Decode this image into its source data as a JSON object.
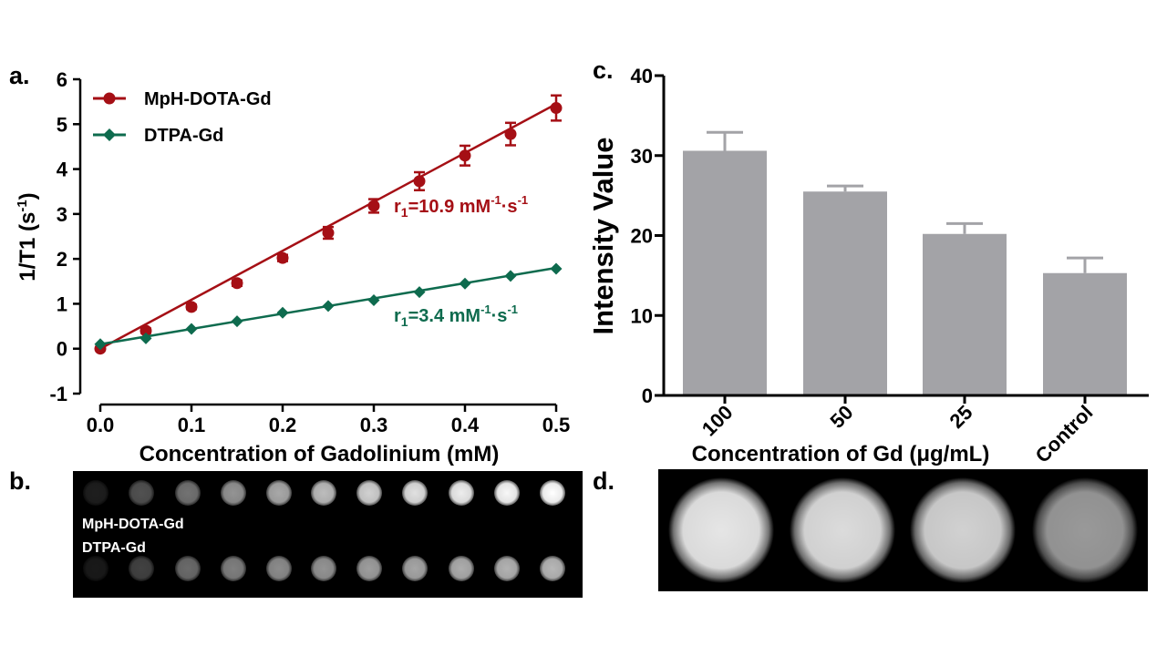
{
  "panels": {
    "a": "a.",
    "b": "b.",
    "c": "c.",
    "d": "d."
  },
  "chart_data": [
    {
      "type": "line",
      "panel": "a.",
      "xlabel": "Concentration of Gadolinium (mM)",
      "ylabel": "1/T1 (s-1)",
      "ylabel_parts": {
        "base": "1/T1 (s",
        "sup": "-1",
        "close": ")"
      },
      "xlim": [
        0,
        0.5
      ],
      "ylim": [
        -1,
        6
      ],
      "xticks": [
        "0.0",
        "0.1",
        "0.2",
        "0.3",
        "0.4",
        "0.5"
      ],
      "yticks": [
        "-1",
        "0",
        "1",
        "2",
        "3",
        "4",
        "5",
        "6"
      ],
      "legend_position": "top-left",
      "series": [
        {
          "name": "MpH-DOTA-Gd",
          "color": "#A50F15",
          "marker": "circle",
          "x": [
            0,
            0.05,
            0.1,
            0.15,
            0.2,
            0.25,
            0.3,
            0.35,
            0.4,
            0.45,
            0.5
          ],
          "y": [
            0.0,
            0.4,
            0.93,
            1.46,
            2.02,
            2.58,
            3.18,
            3.73,
            4.3,
            4.78,
            5.36
          ],
          "error": [
            0.03,
            0.05,
            0.05,
            0.06,
            0.07,
            0.13,
            0.15,
            0.2,
            0.22,
            0.25,
            0.28
          ],
          "fit": {
            "slope": 10.9,
            "intercept": 0.0
          },
          "annotation": {
            "text": "r1=10.9 mM-1·s-1",
            "parts": [
              "r",
              "1",
              "=10.9 mM",
              "-1",
              "·s",
              "-1"
            ]
          }
        },
        {
          "name": "DTPA-Gd",
          "color": "#0E6B4E",
          "marker": "diamond",
          "x": [
            0,
            0.05,
            0.1,
            0.15,
            0.2,
            0.25,
            0.3,
            0.35,
            0.4,
            0.45,
            0.5
          ],
          "y": [
            0.1,
            0.23,
            0.44,
            0.61,
            0.8,
            0.95,
            1.08,
            1.26,
            1.45,
            1.62,
            1.78
          ],
          "fit": {
            "slope": 3.4,
            "intercept": 0.1
          },
          "annotation": {
            "text": "r1=3.4 mM-1·s-1",
            "parts": [
              "r",
              "1",
              "=3.4 mM",
              "-1",
              "·s",
              "-1"
            ]
          }
        }
      ]
    },
    {
      "type": "bar",
      "panel": "c.",
      "xlabel": "Concentration of Gd (μg/mL)",
      "ylabel": "Intensity Value",
      "ylim": [
        0,
        40
      ],
      "yticks": [
        "0",
        "10",
        "20",
        "30",
        "40"
      ],
      "categories": [
        "100",
        "50",
        "25",
        "Control"
      ],
      "values": [
        30.6,
        25.5,
        20.2,
        15.3
      ],
      "error": [
        2.3,
        0.7,
        1.3,
        1.9
      ],
      "bar_color": "#A3A3A7"
    }
  ],
  "mri_b": {
    "labels": [
      "MpH-DOTA-Gd",
      "DTPA-Gd"
    ],
    "row1_brightness": [
      0.12,
      0.32,
      0.45,
      0.58,
      0.66,
      0.74,
      0.82,
      0.88,
      0.93,
      0.97,
      1.0
    ],
    "row2_brightness": [
      0.1,
      0.26,
      0.42,
      0.5,
      0.55,
      0.58,
      0.62,
      0.65,
      0.68,
      0.7,
      0.72
    ]
  },
  "mri_d": {
    "brightness": [
      0.9,
      0.86,
      0.82,
      0.6
    ]
  }
}
